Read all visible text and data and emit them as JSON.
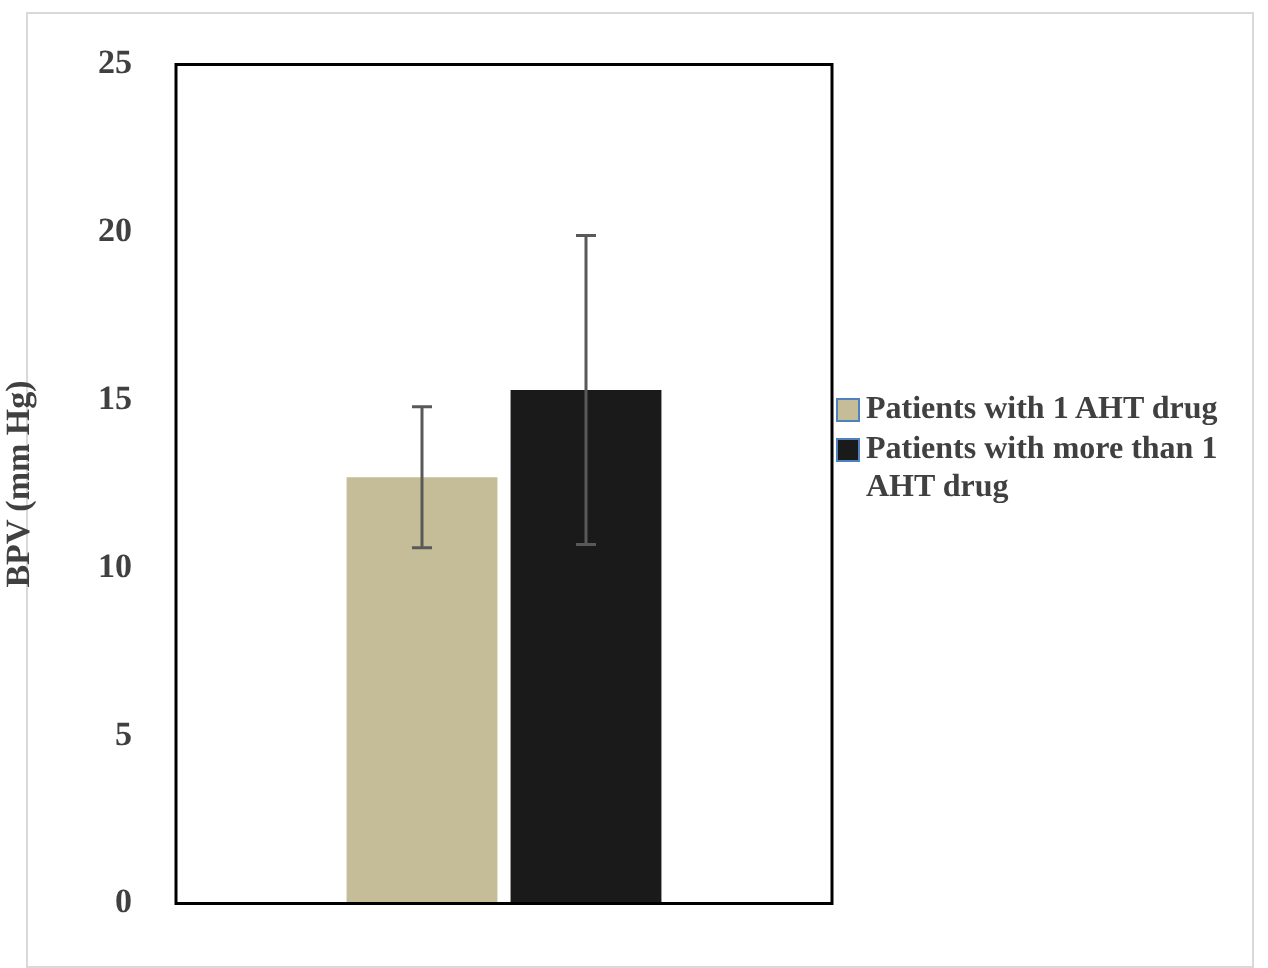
{
  "chart_data": {
    "type": "bar",
    "ylabel": "BPV (mm Hg)",
    "categories": [
      null
    ],
    "series": [
      {
        "name": "Patients with 1 AHT drug",
        "color": "#c4bd97",
        "values": [
          12.7
        ],
        "errors": [
          2.1
        ]
      },
      {
        "name": "Patients with more than 1 AHT drug",
        "color": "#1a1a1a",
        "values": [
          15.3
        ],
        "errors": [
          4.6
        ]
      }
    ],
    "ylim": [
      0,
      25
    ],
    "yticks": [
      0,
      5,
      10,
      15,
      20,
      25
    ],
    "grid": false,
    "legend": "right"
  }
}
